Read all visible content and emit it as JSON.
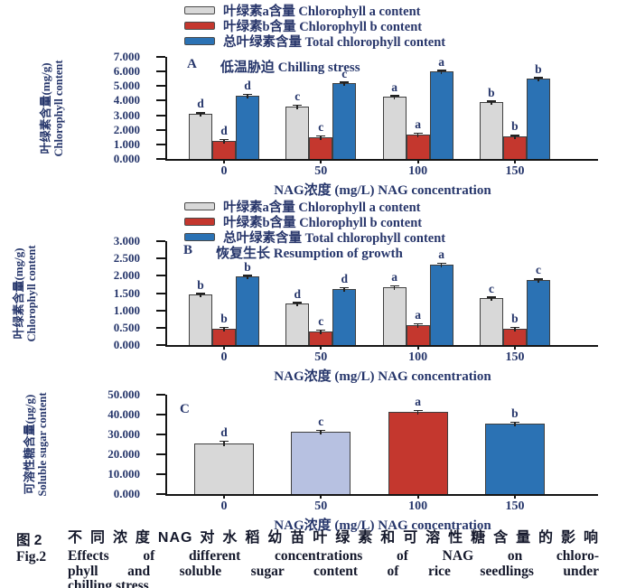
{
  "colors": {
    "chl_a": "#d8d8d8",
    "chl_b": "#c4372e",
    "total": "#2b72b4",
    "lavender": "#b7c1e1",
    "axis": "#151515",
    "text_navy": "#26366b"
  },
  "legend": {
    "items": [
      {
        "label": "叶绿素a含量 Chlorophyll a content",
        "color": "#d8d8d8",
        "swatch": "chlorophyll-a-swatch"
      },
      {
        "label": "叶绿素b含量 Chlorophyll b content",
        "color": "#c4372e",
        "swatch": "chlorophyll-b-swatch"
      },
      {
        "label": "总叶绿素含量 Total chlorophyll content",
        "color": "#2b72b4",
        "swatch": "total-chlorophyll-swatch"
      }
    ]
  },
  "chart_data": [
    {
      "type": "bar",
      "panel_label": "A",
      "title": "低温胁迫 Chilling stress",
      "ylabel_cn": "叶绿素含量(mg/g)",
      "ylabel_en": "Chlorophyll content",
      "xlabel": "NAG浓度 (mg/L) NAG concentration",
      "ylim": [
        0,
        7
      ],
      "ytick_step": 1,
      "categories": [
        "0",
        "50",
        "100",
        "150"
      ],
      "series": [
        {
          "name": "Chlorophyll a content",
          "color": "#d8d8d8",
          "values": [
            3.1,
            3.6,
            4.25,
            3.9
          ],
          "errors": [
            0.15,
            0.1,
            0.1,
            0.1
          ],
          "letters": [
            "d",
            "c",
            "a",
            "b"
          ]
        },
        {
          "name": "Chlorophyll b content",
          "color": "#c4372e",
          "values": [
            1.25,
            1.5,
            1.7,
            1.55
          ],
          "errors": [
            0.05,
            0.05,
            0.06,
            0.05
          ],
          "letters": [
            "d",
            "c",
            "a",
            "b"
          ]
        },
        {
          "name": "Total chlorophyll content",
          "color": "#2b72b4",
          "values": [
            4.35,
            5.2,
            6.0,
            5.5
          ],
          "errors": [
            0.12,
            0.1,
            0.08,
            0.1
          ],
          "letters": [
            "d",
            "c",
            "a",
            "b"
          ]
        }
      ]
    },
    {
      "type": "bar",
      "panel_label": "B",
      "title": "恢复生长 Resumption of growth",
      "ylabel_cn": "叶绿素含量(mg/g)",
      "ylabel_en": "Chlorophyll content",
      "xlabel": "NAG浓度 (mg/L) NAG concentration",
      "ylim": [
        0,
        3
      ],
      "ytick_step": 0.5,
      "categories": [
        "0",
        "50",
        "100",
        "150"
      ],
      "series": [
        {
          "name": "Chlorophyll a content",
          "color": "#d8d8d8",
          "values": [
            1.45,
            1.2,
            1.68,
            1.35
          ],
          "errors": [
            0.04,
            0.04,
            0.04,
            0.05
          ],
          "letters": [
            "b",
            "d",
            "a",
            "c"
          ]
        },
        {
          "name": "Chlorophyll b content",
          "color": "#c4372e",
          "values": [
            0.48,
            0.4,
            0.58,
            0.48
          ],
          "errors": [
            0.03,
            0.03,
            0.03,
            0.03
          ],
          "letters": [
            "b",
            "c",
            "a",
            "b"
          ]
        },
        {
          "name": "Total chlorophyll content",
          "color": "#2b72b4",
          "values": [
            1.97,
            1.63,
            2.33,
            1.88
          ],
          "errors": [
            0.05,
            0.04,
            0.04,
            0.05
          ],
          "letters": [
            "b",
            "d",
            "a",
            "c"
          ]
        }
      ]
    },
    {
      "type": "bar",
      "panel_label": "C",
      "title": "",
      "ylabel_cn": "可溶性糖含量(μg/g)",
      "ylabel_en": "Soluble sugar content",
      "xlabel": "NAG浓度 (mg/L) NAG concentration",
      "ylim": [
        0,
        50
      ],
      "ytick_step": 10,
      "categories": [
        "0",
        "50",
        "100",
        "150"
      ],
      "series": [
        {
          "name": "Soluble sugar content",
          "colors": [
            "#d8d8d8",
            "#b7c1e1",
            "#c4372e",
            "#2b72b4"
          ],
          "values": [
            25.5,
            31.5,
            41.5,
            35.5
          ],
          "errors": [
            2.0,
            1.2,
            1.2,
            1.5
          ],
          "letters": [
            "d",
            "c",
            "a",
            "b"
          ]
        }
      ]
    }
  ],
  "caption": {
    "fig_label_cn": "图 2",
    "title_cn": "不同浓度NAG对水稻幼苗叶绿素和可溶性糖含量的影响",
    "fig_label_en": "Fig.2",
    "lines_en": [
      "Effects of different concentrations of NAG on chloro-",
      "phyll and soluble sugar content of rice seedlings under",
      "chilling stress"
    ]
  }
}
